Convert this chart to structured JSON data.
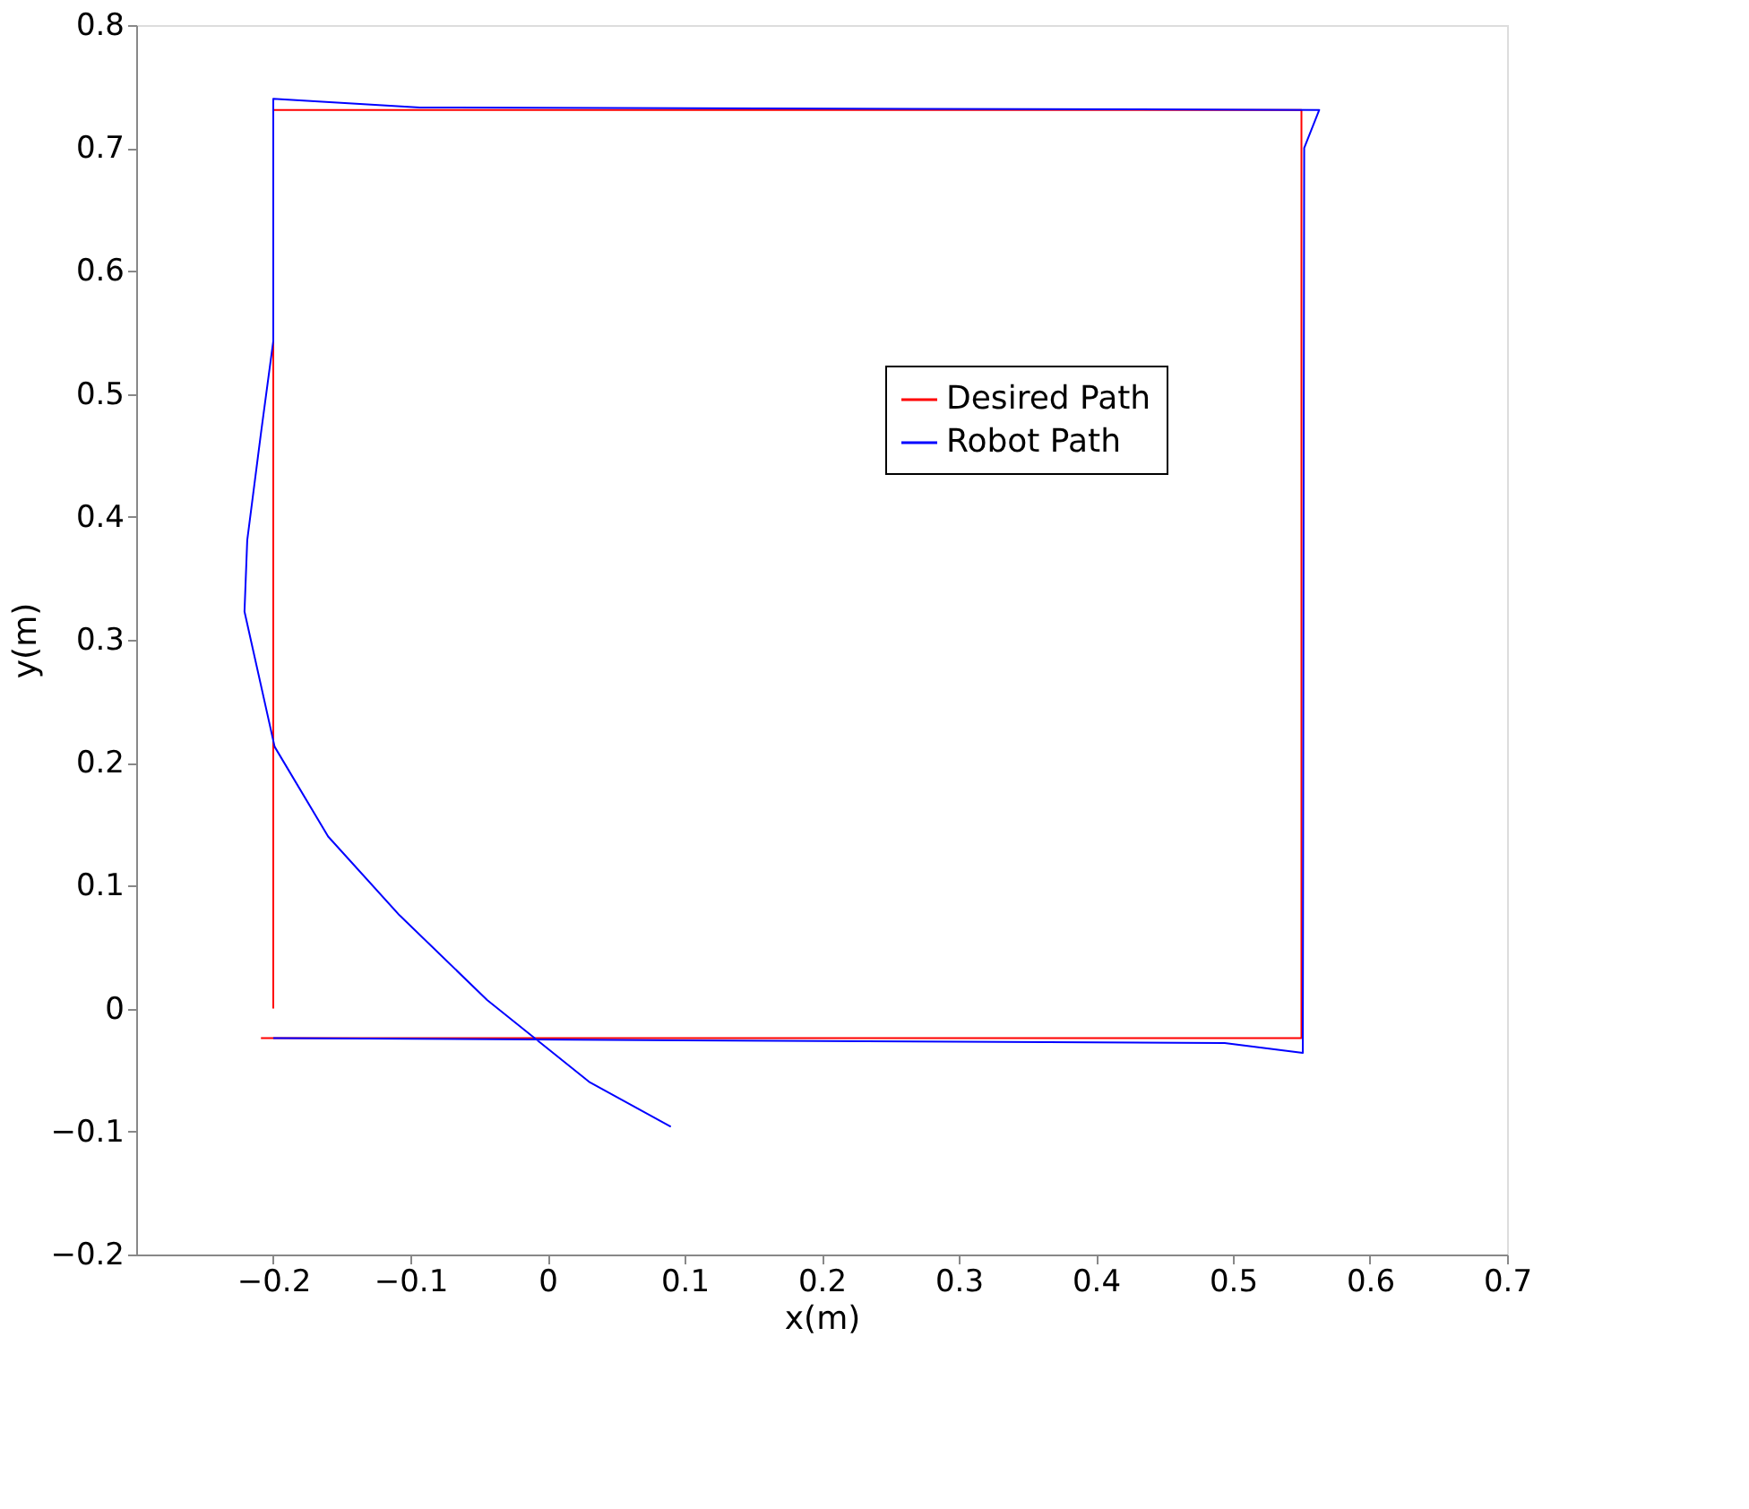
{
  "chart_data": {
    "type": "line",
    "xlabel": "x(m)",
    "ylabel": "y(m)",
    "xlim": [
      -0.3,
      0.7
    ],
    "xticks": [
      -0.2,
      -0.1,
      0,
      0.1,
      0.2,
      0.3,
      0.4,
      0.5,
      0.6,
      0.7
    ],
    "ylim": [
      -0.2,
      0.8
    ],
    "yticks": [
      -0.2,
      -0.1,
      0,
      0.1,
      0.2,
      0.3,
      0.4,
      0.5,
      0.6,
      0.7,
      0.8
    ],
    "grid": false,
    "legend": "top right",
    "line_style": "solid",
    "marker": "none",
    "series": [
      {
        "name": "Desired Path",
        "color": "#ff0000",
        "x": [
          -0.209,
          0.55,
          0.55,
          -0.2,
          -0.2
        ],
        "values": [
          -0.024,
          -0.024,
          0.731,
          0.731,
          0
        ]
      },
      {
        "name": "Robot Path",
        "color": "#0000ff",
        "x": [
          0.09,
          0.031,
          -0.044,
          -0.108,
          -0.16,
          -0.199,
          -0.221,
          -0.219,
          -0.209,
          -0.2,
          -0.2,
          -0.2,
          -0.093,
          0.563,
          0.552,
          0.551,
          0.494,
          -0.2
        ],
        "values": [
          -0.096,
          -0.06,
          0.007,
          0.076,
          0.14,
          0.213,
          0.323,
          0.381,
          0.468,
          0.543,
          0.65,
          0.74,
          0.733,
          0.731,
          0.7,
          -0.036,
          -0.028,
          -0.024
        ]
      }
    ]
  }
}
